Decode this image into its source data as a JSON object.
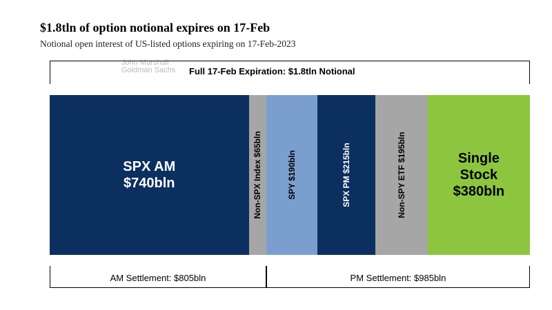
{
  "chart_data": {
    "type": "bar",
    "title": "$1.8tln of option notional expires on 17-Feb",
    "subtitle": "Notional open interest of US-listed options expiring on 17-Feb-2023",
    "watermark": [
      "John Marshall",
      "Goldman Sachs"
    ],
    "total_label": "Full 17-Feb Expiration: $1.8tln Notional",
    "unit": "bln",
    "segments": [
      {
        "name": "SPX AM",
        "value": 740,
        "label_lines": [
          "SPX AM",
          "$740bln"
        ],
        "color": "#0b2f5f",
        "text_color": "#ffffff",
        "orientation": "horizontal"
      },
      {
        "name": "Non-SPX Index",
        "value": 65,
        "label_lines": [
          "Non-SPX Index $65bln"
        ],
        "color": "#a6a6a6",
        "text_color": "#000000",
        "orientation": "vertical"
      },
      {
        "name": "SPY",
        "value": 190,
        "label_lines": [
          "SPY $190bln"
        ],
        "color": "#7a9fcf",
        "text_color": "#000000",
        "orientation": "vertical"
      },
      {
        "name": "SPX PM",
        "value": 215,
        "label_lines": [
          "SPX PM $215bln"
        ],
        "color": "#0b2f5f",
        "text_color": "#ffffff",
        "orientation": "vertical"
      },
      {
        "name": "Non-SPY ETF",
        "value": 195,
        "label_lines": [
          "Non-SPY ETF $195bln"
        ],
        "color": "#a6a6a6",
        "text_color": "#000000",
        "orientation": "vertical"
      },
      {
        "name": "Single Stock",
        "value": 380,
        "label_lines": [
          "Single",
          "Stock",
          "$380bln"
        ],
        "color": "#8cc63f",
        "text_color": "#000000",
        "orientation": "horizontal"
      }
    ],
    "groups": [
      {
        "label": "AM Settlement: $805bln",
        "value": 805,
        "segments": [
          "SPX AM",
          "Non-SPX Index"
        ]
      },
      {
        "label": "PM Settlement: $985bln",
        "value": 985,
        "segments": [
          "SPY",
          "SPX PM",
          "Non-SPY ETF",
          "Single Stock"
        ]
      }
    ]
  }
}
